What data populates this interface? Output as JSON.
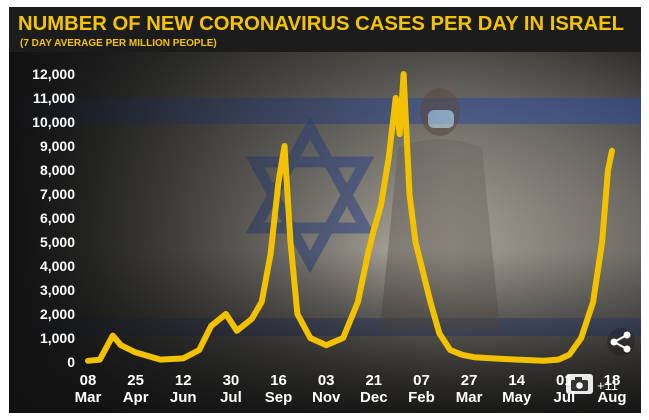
{
  "chart_data": {
    "type": "area",
    "title": "NUMBER OF NEW CORONAVIRUS CASES PER DAY IN ISRAEL",
    "subtitle": "(7 DAY AVERAGE PER MILLION PEOPLE)",
    "xlabel": "",
    "ylabel": "",
    "ylim": [
      0,
      12000
    ],
    "yticks": [
      0,
      1000,
      2000,
      3000,
      4000,
      5000,
      6000,
      7000,
      8000,
      9000,
      10000,
      11000,
      12000
    ],
    "ytick_labels": [
      "0",
      "1,000",
      "2,000",
      "3,000",
      "4,000",
      "5,000",
      "6,000",
      "7,000",
      "8,000",
      "9,000",
      "10,000",
      "11,000",
      "12,000"
    ],
    "xticks": [
      {
        "day": "08",
        "month": "Mar"
      },
      {
        "day": "25",
        "month": "Apr"
      },
      {
        "day": "12",
        "month": "Jun"
      },
      {
        "day": "30",
        "month": "Jul"
      },
      {
        "day": "16",
        "month": "Sep"
      },
      {
        "day": "03",
        "month": "Nov"
      },
      {
        "day": "21",
        "month": "Dec"
      },
      {
        "day": "07",
        "month": "Feb"
      },
      {
        "day": "27",
        "month": "Mar"
      },
      {
        "day": "14",
        "month": "May"
      },
      {
        "day": "01",
        "month": "Jul"
      },
      {
        "day": "18",
        "month": "Aug"
      }
    ],
    "x": [
      "2020-03-08",
      "2020-03-20",
      "2020-04-02",
      "2020-04-10",
      "2020-04-25",
      "2020-05-20",
      "2020-06-12",
      "2020-06-28",
      "2020-07-10",
      "2020-07-25",
      "2020-08-05",
      "2020-08-20",
      "2020-08-30",
      "2020-09-08",
      "2020-09-16",
      "2020-09-22",
      "2020-09-28",
      "2020-10-05",
      "2020-10-18",
      "2020-11-03",
      "2020-11-20",
      "2020-12-05",
      "2020-12-15",
      "2020-12-21",
      "2020-12-28",
      "2021-01-05",
      "2021-01-12",
      "2021-01-16",
      "2021-01-20",
      "2021-01-26",
      "2021-02-01",
      "2021-02-07",
      "2021-02-16",
      "2021-02-25",
      "2021-03-08",
      "2021-03-20",
      "2021-04-01",
      "2021-04-20",
      "2021-05-14",
      "2021-06-10",
      "2021-06-25",
      "2021-07-06",
      "2021-07-18",
      "2021-07-30",
      "2021-08-08",
      "2021-08-14",
      "2021-08-18"
    ],
    "series": [
      {
        "values": [
          50,
          100,
          1100,
          700,
          400,
          100,
          150,
          500,
          1500,
          2000,
          1300,
          1800,
          2500,
          4500,
          7500,
          9000,
          5000,
          2000,
          1000,
          700,
          1000,
          2500,
          4500,
          5500,
          6500,
          8500,
          11000,
          9500,
          12000,
          7000,
          5000,
          4000,
          2500,
          1200,
          500,
          300,
          200,
          150,
          100,
          50,
          100,
          300,
          1000,
          2500,
          5000,
          8000,
          8800
        ]
      }
    ]
  },
  "photo_credit_icon": "camera-icon",
  "photo_credit_count": "+11",
  "share_icon": "share-icon",
  "colors": {
    "title": "#f5c400",
    "subtitle": "#f5c400",
    "tick_text": "#ffffff",
    "line": "#f2c200",
    "background": "#2a2a2a"
  }
}
